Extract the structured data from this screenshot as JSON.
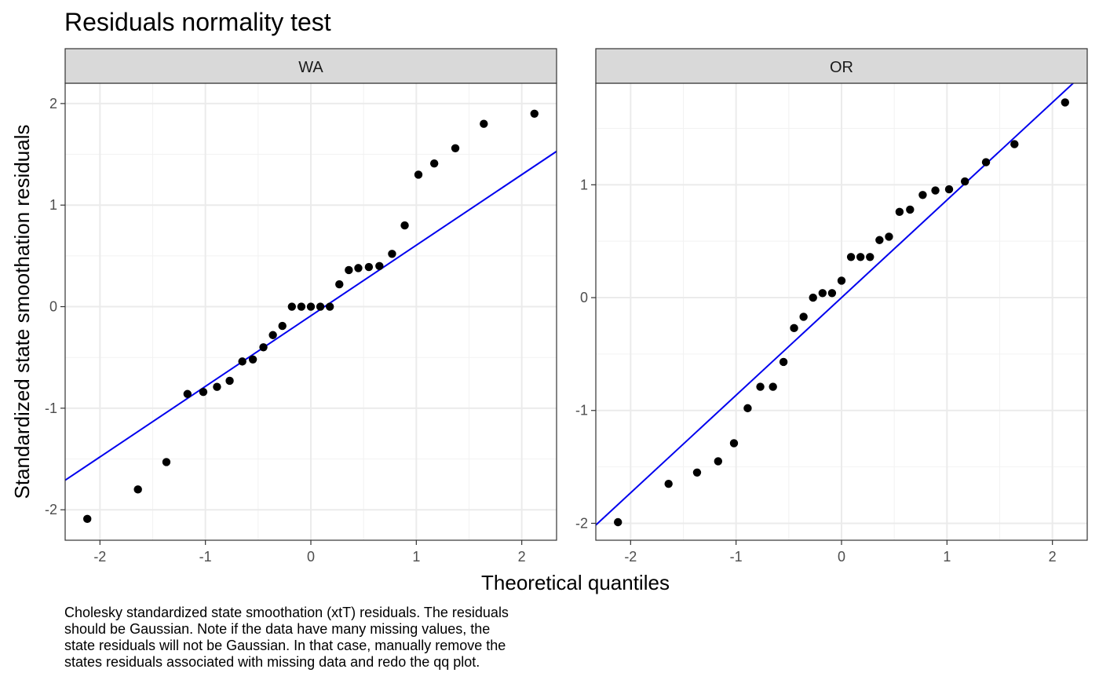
{
  "chart_data": {
    "type": "scatter",
    "title": "Residuals normality test",
    "xlabel": "Theoretical quantiles",
    "ylabel": "Standardized state smoothation residuals",
    "caption_lines": [
      "Cholesky standardized state smoothation (xtT) residuals. The residuals",
      "should be Gaussian. Note if the data have many missing values, the",
      "state residuals will not be Gaussian. In that case, manually remove the",
      "states residuals associated with missing data and redo the qq plot."
    ],
    "grid": true,
    "colors": {
      "points": "#000000",
      "line": "#0000ee",
      "strip_bg": "#d9d9d9"
    },
    "panels": [
      {
        "name": "WA",
        "xlim": [
          -2.33,
          2.33
        ],
        "ylim": [
          -2.3,
          2.2
        ],
        "xticks": [
          -2,
          -1,
          0,
          1,
          2
        ],
        "yticks": [
          -2,
          -1,
          0,
          1,
          2
        ],
        "line": {
          "intercept": -0.09,
          "slope": 0.695
        },
        "points": [
          [
            -2.12,
            -2.09
          ],
          [
            -1.64,
            -1.8
          ],
          [
            -1.37,
            -1.53
          ],
          [
            -1.17,
            -0.86
          ],
          [
            -1.02,
            -0.84
          ],
          [
            -0.89,
            -0.79
          ],
          [
            -0.77,
            -0.73
          ],
          [
            -0.65,
            -0.54
          ],
          [
            -0.55,
            -0.52
          ],
          [
            -0.45,
            -0.4
          ],
          [
            -0.36,
            -0.28
          ],
          [
            -0.27,
            -0.19
          ],
          [
            -0.18,
            0.0
          ],
          [
            -0.09,
            0.0
          ],
          [
            0.0,
            0.0
          ],
          [
            0.09,
            0.0
          ],
          [
            0.18,
            0.0
          ],
          [
            0.27,
            0.22
          ],
          [
            0.36,
            0.36
          ],
          [
            0.45,
            0.38
          ],
          [
            0.55,
            0.39
          ],
          [
            0.65,
            0.4
          ],
          [
            0.77,
            0.52
          ],
          [
            0.89,
            0.8
          ],
          [
            1.02,
            1.3
          ],
          [
            1.17,
            1.41
          ],
          [
            1.37,
            1.56
          ],
          [
            1.64,
            1.8
          ],
          [
            2.12,
            1.9
          ]
        ]
      },
      {
        "name": "OR",
        "xlim": [
          -2.33,
          2.33
        ],
        "ylim": [
          -2.15,
          1.9
        ],
        "xticks": [
          -2,
          -1,
          0,
          1,
          2
        ],
        "yticks": [
          -2,
          -1,
          0,
          1
        ],
        "line": {
          "intercept": 0.0,
          "slope": 0.865
        },
        "points": [
          [
            -2.12,
            -1.99
          ],
          [
            -1.64,
            -1.65
          ],
          [
            -1.37,
            -1.55
          ],
          [
            -1.17,
            -1.45
          ],
          [
            -1.02,
            -1.29
          ],
          [
            -0.89,
            -0.98
          ],
          [
            -0.77,
            -0.79
          ],
          [
            -0.65,
            -0.79
          ],
          [
            -0.55,
            -0.57
          ],
          [
            -0.45,
            -0.27
          ],
          [
            -0.36,
            -0.17
          ],
          [
            -0.27,
            0.0
          ],
          [
            -0.18,
            0.04
          ],
          [
            -0.09,
            0.04
          ],
          [
            0.0,
            0.15
          ],
          [
            0.09,
            0.36
          ],
          [
            0.18,
            0.36
          ],
          [
            0.27,
            0.36
          ],
          [
            0.36,
            0.51
          ],
          [
            0.45,
            0.54
          ],
          [
            0.55,
            0.76
          ],
          [
            0.65,
            0.78
          ],
          [
            0.77,
            0.91
          ],
          [
            0.89,
            0.95
          ],
          [
            1.02,
            0.96
          ],
          [
            1.17,
            1.03
          ],
          [
            1.37,
            1.2
          ],
          [
            1.64,
            1.36
          ],
          [
            2.12,
            1.73
          ]
        ]
      }
    ]
  }
}
